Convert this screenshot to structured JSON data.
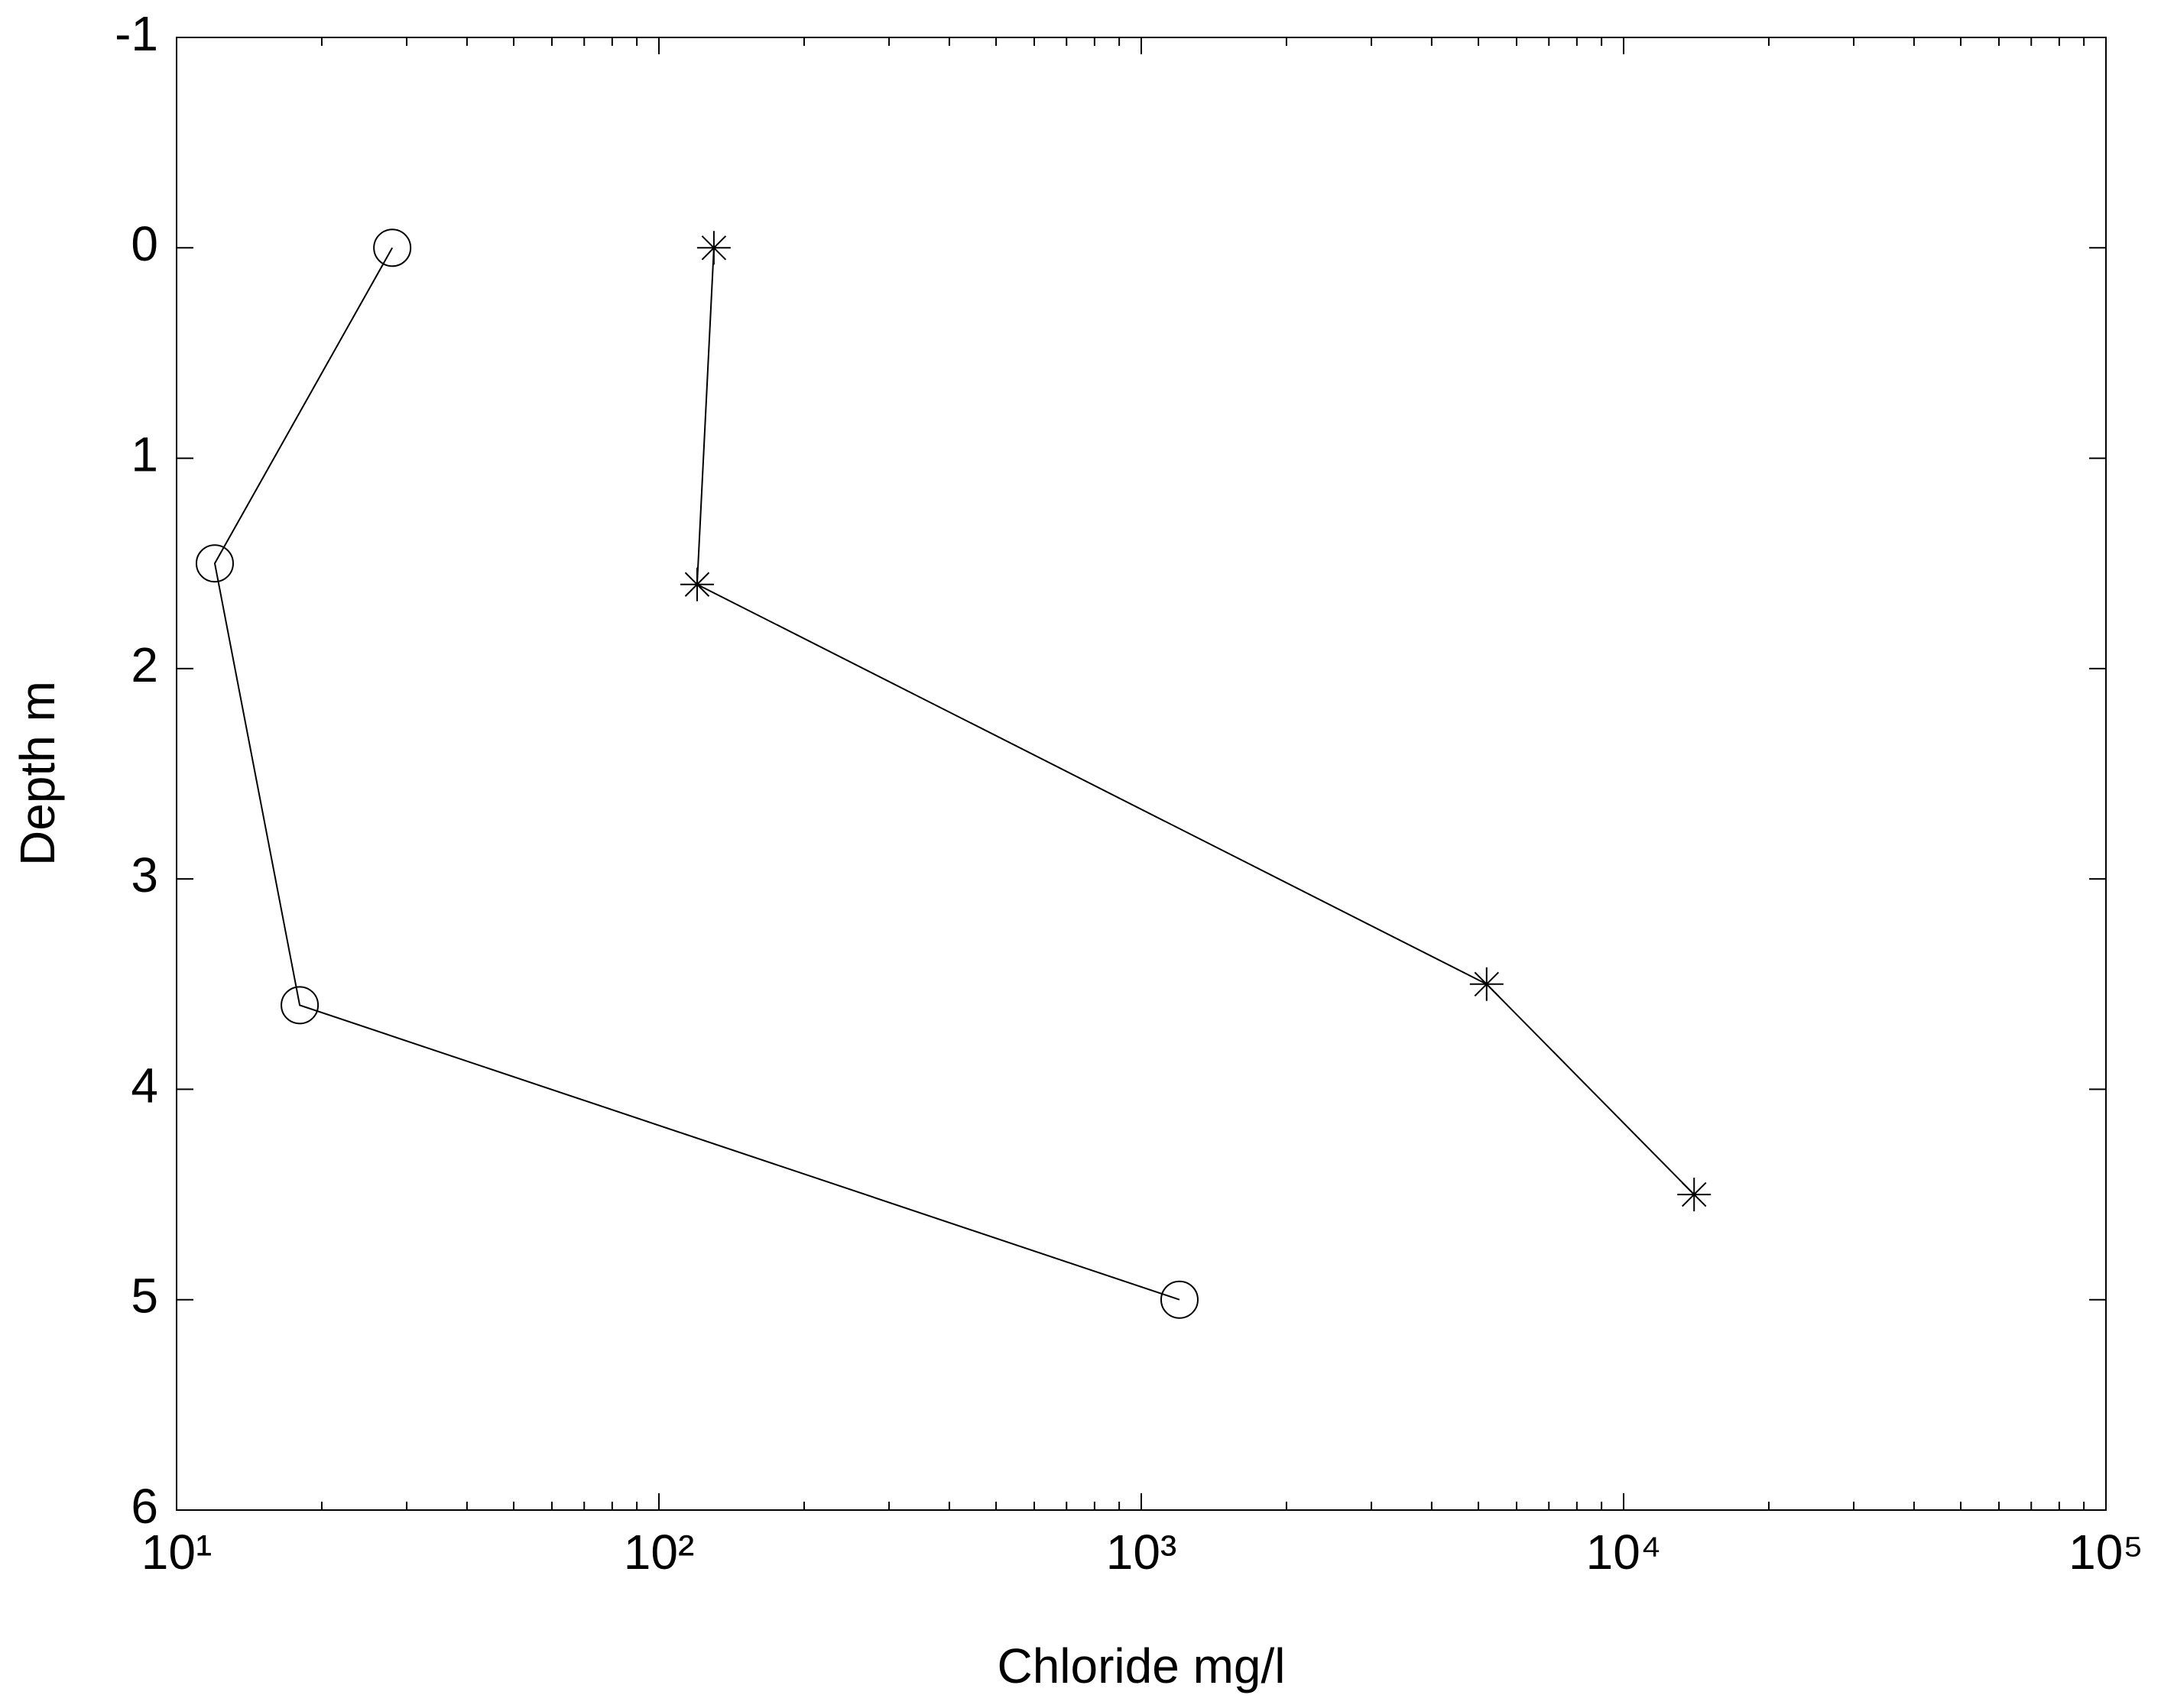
{
  "chart_data": {
    "type": "line",
    "xlabel": "Chloride mg/l",
    "ylabel": "Depth m",
    "xscale": "log",
    "yreverse": true,
    "grid": false,
    "xlim": [
      10,
      100000
    ],
    "xticks": [
      {
        "value": 10,
        "label": "10¹"
      },
      {
        "value": 100,
        "label": "10²"
      },
      {
        "value": 1000,
        "label": "10³"
      },
      {
        "value": 10000,
        "label": "10⁴"
      },
      {
        "value": 100000,
        "label": "10⁵"
      }
    ],
    "xminorticks": [
      20,
      30,
      40,
      50,
      60,
      70,
      80,
      90,
      200,
      300,
      400,
      500,
      600,
      700,
      800,
      900,
      2000,
      3000,
      4000,
      5000,
      6000,
      7000,
      8000,
      9000,
      20000,
      30000,
      40000,
      50000,
      60000,
      70000,
      80000,
      90000
    ],
    "ylim": [
      -1,
      6
    ],
    "yticks": [
      -1,
      0,
      1,
      2,
      3,
      4,
      5,
      6
    ],
    "series": [
      {
        "marker": "circle",
        "color": "#000000",
        "x": [
          28,
          12,
          18,
          1200
        ],
        "values": [
          0,
          1.5,
          3.6,
          5
        ]
      },
      {
        "marker": "star",
        "color": "#000000",
        "x": [
          130,
          120,
          5200,
          14000
        ],
        "values": [
          0,
          1.6,
          3.5,
          4.5
        ]
      }
    ]
  }
}
